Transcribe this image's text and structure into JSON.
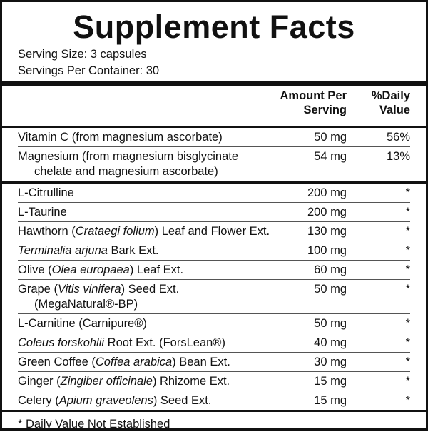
{
  "header": {
    "title": "Supplement Facts",
    "serving_size": "Serving Size: 3 capsules",
    "servings_per_container": "Servings Per Container: 30"
  },
  "table": {
    "columns": [
      [
        "Amount Per",
        "Serving"
      ],
      [
        "%Daily",
        "Value"
      ]
    ],
    "sections": [
      {
        "rows": [
          {
            "name": [
              [
                {
                  "text": "Vitamin C (from magnesium ascorbate)"
                }
              ]
            ],
            "amount": "50 mg",
            "dv": "56%"
          },
          {
            "name": [
              [
                {
                  "text": "Magnesium (from magnesium bisglycinate"
                }
              ],
              [
                {
                  "text": "chelate and magnesium ascorbate)"
                }
              ]
            ],
            "amount": "54 mg",
            "dv": "13%"
          }
        ]
      },
      {
        "rows": [
          {
            "name": [
              [
                {
                  "text": "L-Citrulline"
                }
              ]
            ],
            "amount": "200 mg",
            "dv": "*"
          },
          {
            "name": [
              [
                {
                  "text": "L-Taurine"
                }
              ]
            ],
            "amount": "200 mg",
            "dv": "*"
          },
          {
            "name": [
              [
                {
                  "text": "Hawthorn ("
                },
                {
                  "text": "Crataegi folium",
                  "italic": true
                },
                {
                  "text": ") Leaf and Flower Ext."
                }
              ]
            ],
            "amount": "130 mg",
            "dv": "*"
          },
          {
            "name": [
              [
                {
                  "text": "Terminalia arjuna",
                  "italic": true
                },
                {
                  "text": " Bark Ext."
                }
              ]
            ],
            "amount": "100 mg",
            "dv": "*"
          },
          {
            "name": [
              [
                {
                  "text": "Olive ("
                },
                {
                  "text": "Olea europaea",
                  "italic": true
                },
                {
                  "text": ") Leaf Ext."
                }
              ]
            ],
            "amount": "60 mg",
            "dv": "*"
          },
          {
            "name": [
              [
                {
                  "text": "Grape ("
                },
                {
                  "text": "Vitis vinifera",
                  "italic": true
                },
                {
                  "text": ") Seed Ext."
                }
              ],
              [
                {
                  "text": "(MegaNatural®-BP)"
                }
              ]
            ],
            "amount": "50 mg",
            "dv": "*"
          },
          {
            "name": [
              [
                {
                  "text": "L-Carnitine (Carnipure®)"
                }
              ]
            ],
            "amount": "50 mg",
            "dv": "*"
          },
          {
            "name": [
              [
                {
                  "text": "Coleus forskohlii",
                  "italic": true
                },
                {
                  "text": " Root Ext. (ForsLean®)"
                }
              ]
            ],
            "amount": "40 mg",
            "dv": "*"
          },
          {
            "name": [
              [
                {
                  "text": "Green Coffee ("
                },
                {
                  "text": "Coffea arabica",
                  "italic": true
                },
                {
                  "text": ") Bean Ext."
                }
              ]
            ],
            "amount": "30 mg",
            "dv": "*"
          },
          {
            "name": [
              [
                {
                  "text": "Ginger ("
                },
                {
                  "text": "Zingiber officinale",
                  "italic": true
                },
                {
                  "text": ") Rhizome Ext."
                }
              ]
            ],
            "amount": "15 mg",
            "dv": "*"
          },
          {
            "name": [
              [
                {
                  "text": "Celery ("
                },
                {
                  "text": "Apium graveolens",
                  "italic": true
                },
                {
                  "text": ") Seed Ext."
                }
              ]
            ],
            "amount": "15 mg",
            "dv": "*"
          }
        ]
      }
    ]
  },
  "footnote": "* Daily Value Not Established"
}
